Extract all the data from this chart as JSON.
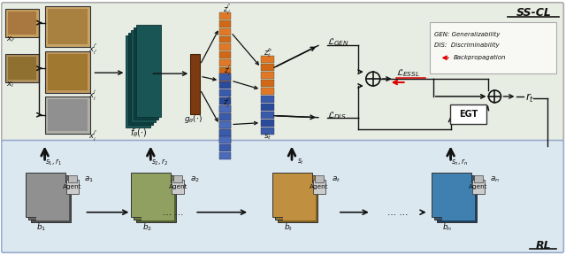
{
  "fig_width": 6.4,
  "fig_height": 2.88,
  "dpi": 100,
  "top_bg": "#e8ede4",
  "bottom_bg": "#dce8f0",
  "top_border": "#aaaaaa",
  "bottom_border": "#99aacc",
  "sscl_label": "SS-CL",
  "rl_label": "RL",
  "legend_gen": "GEN: Generalizability",
  "legend_dis": "DIS:  Discriminability",
  "legend_back": "Backpropagation",
  "egt_label": "EGT",
  "red_arrow": "#dd0000",
  "black": "#111111",
  "white": "#ffffff",
  "orange_bar": "#e07828",
  "blue_bar": "#3a5baa",
  "teal_encoder": "#1a5555",
  "teal_encoder2": "#0d3d3d",
  "brown_proj": "#7b3a10",
  "legend_bg": "#f8f8f4"
}
